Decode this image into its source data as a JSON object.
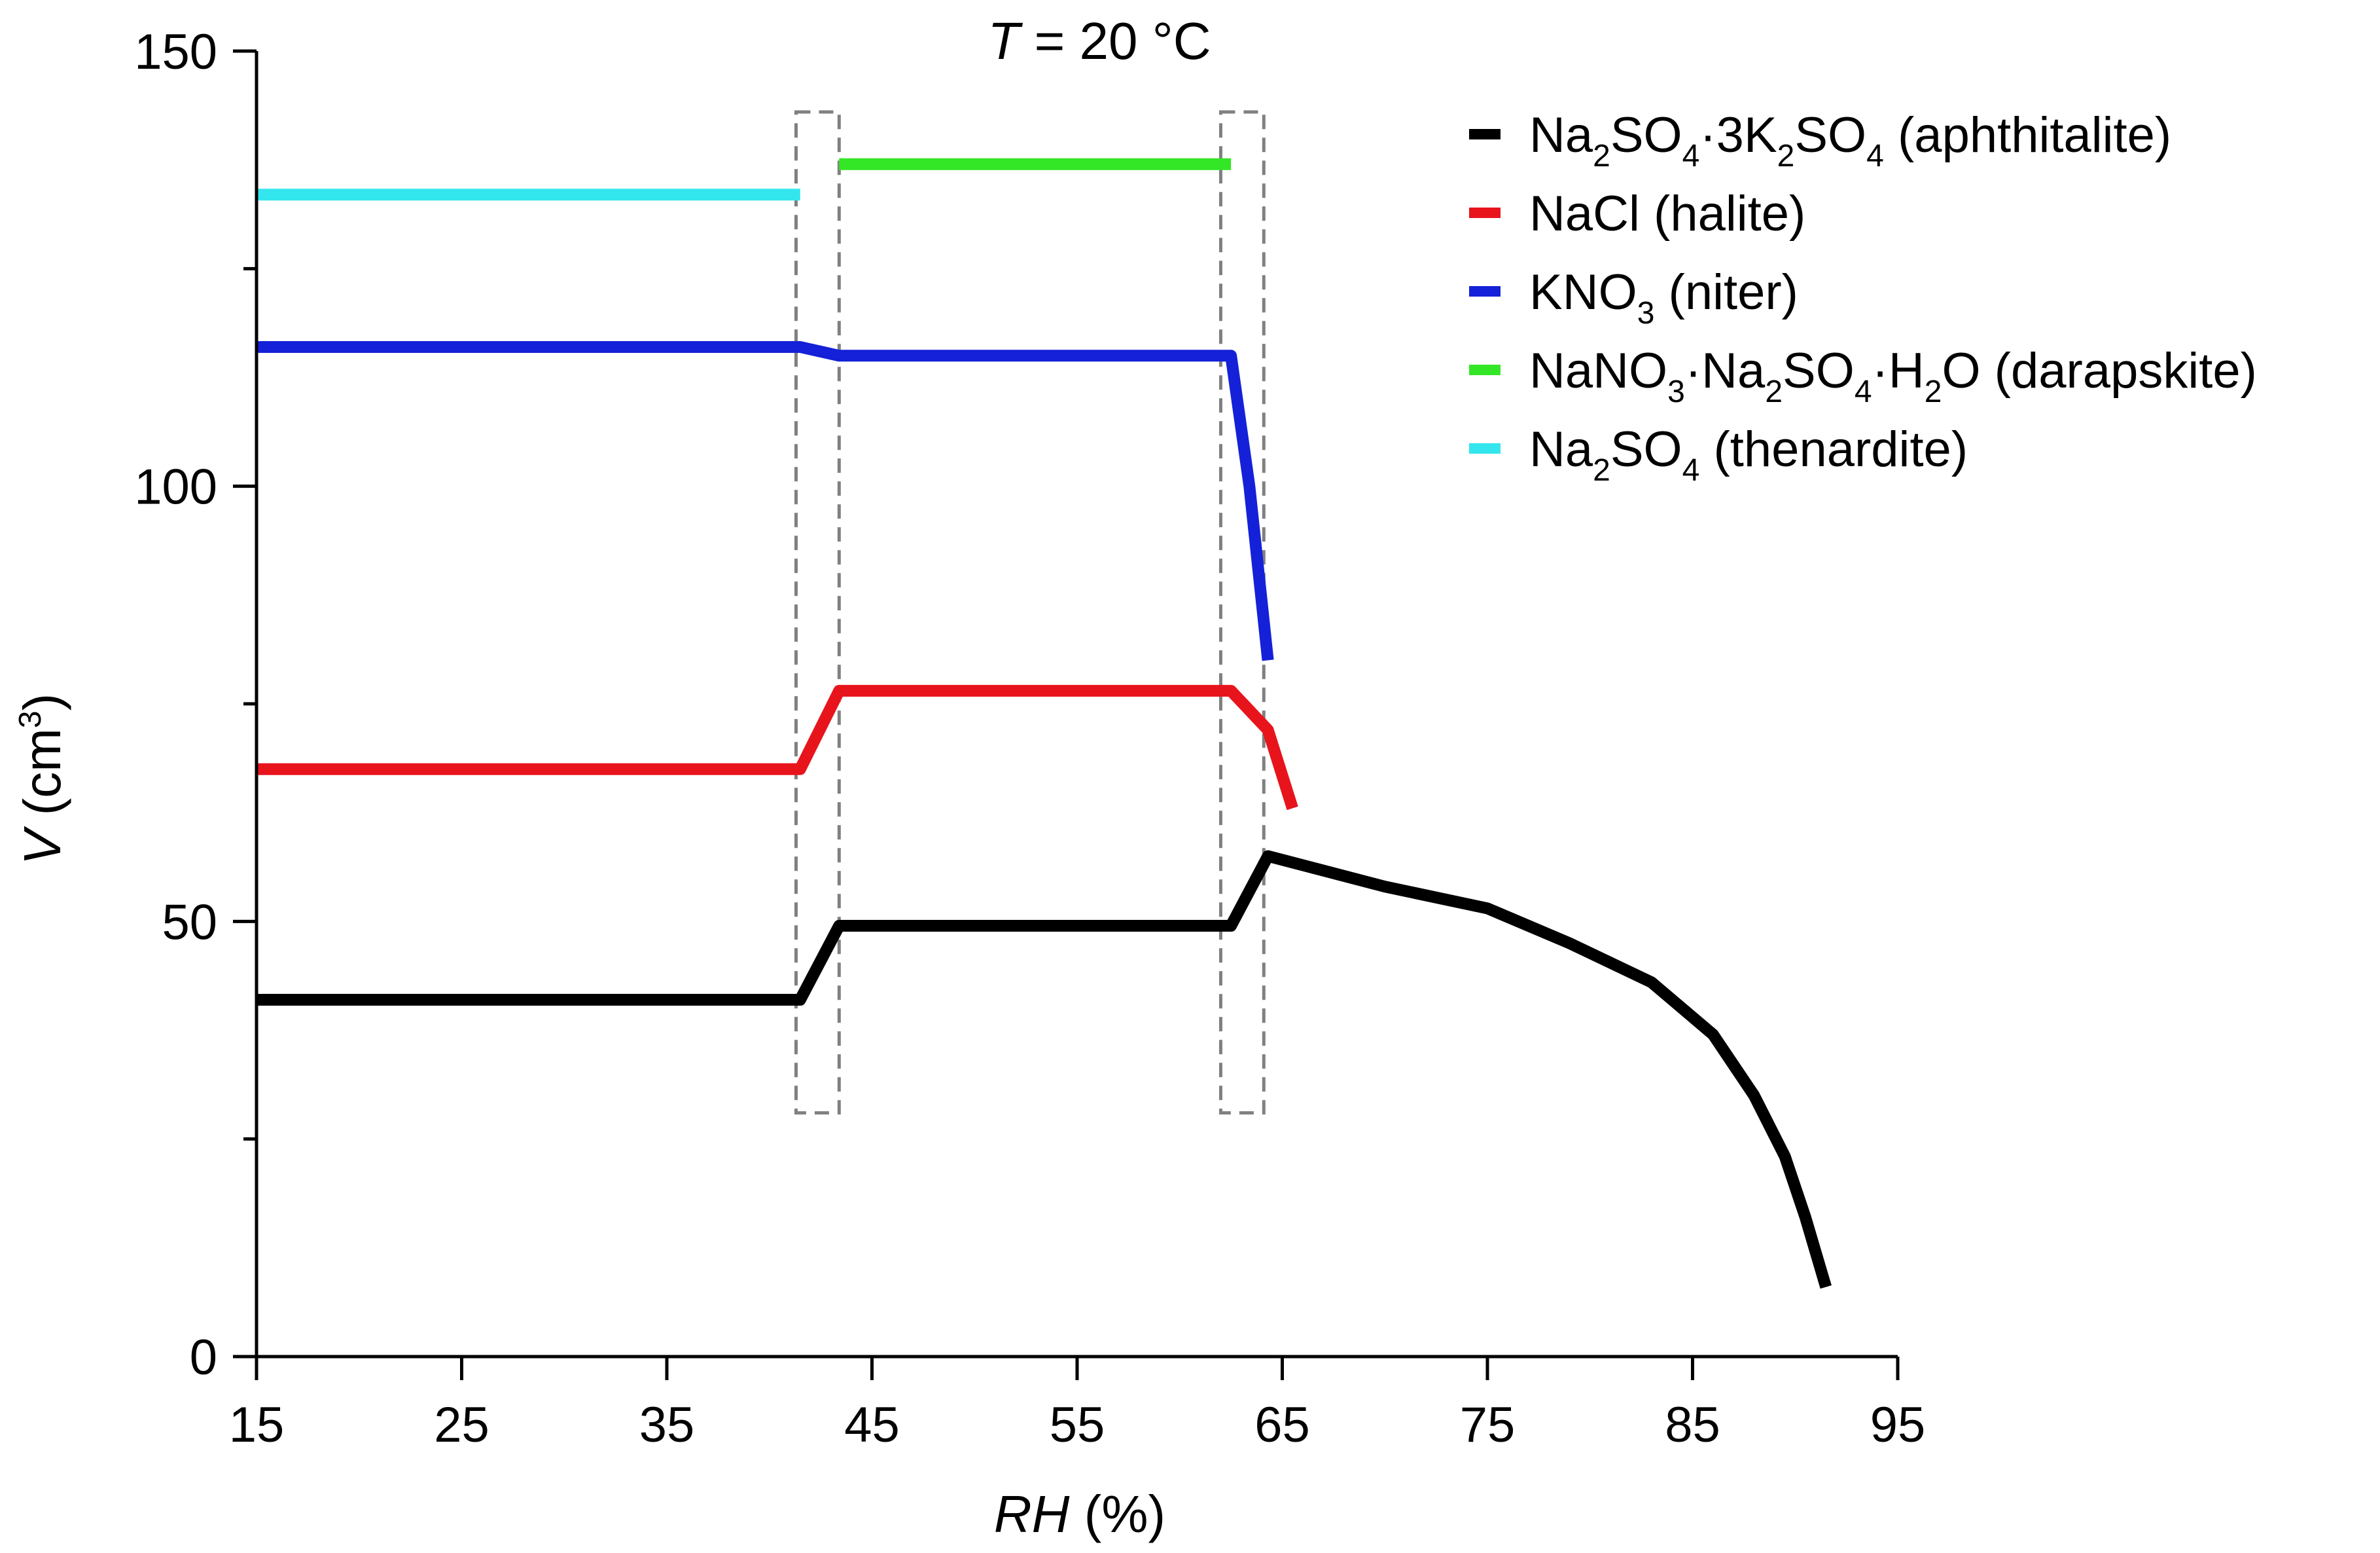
{
  "chart_data": {
    "type": "line",
    "title": "",
    "annotation": {
      "prefix": "T",
      "suffix": " = 20 °C"
    },
    "xlabel": {
      "main": "RH",
      "unit": " (%)"
    },
    "ylabel": {
      "main": "V",
      "unit_open": " (cm",
      "unit_exp": "3",
      "unit_close": ")"
    },
    "xlim": [
      15,
      95
    ],
    "ylim": [
      0,
      150
    ],
    "xticks": [
      15,
      25,
      35,
      45,
      55,
      65,
      75,
      85,
      95
    ],
    "yticks_major": [
      0,
      50,
      100,
      150
    ],
    "yticks_minor": [
      25,
      75,
      125
    ],
    "grid": false,
    "legend_position": "top-right",
    "dashed_regions": [
      {
        "x_start": 41.3,
        "x_end": 43.4,
        "y_bottom": 28,
        "y_top": 143
      },
      {
        "x_start": 62.0,
        "x_end": 64.1,
        "y_bottom": 28,
        "y_top": 143
      }
    ],
    "series": [
      {
        "name": "Na2SO4·3K2SO4 (aphthitalite)",
        "color": "#000000",
        "label_parts": [
          {
            "t": "Na",
            "s": "n"
          },
          {
            "t": "2",
            "s": "sub"
          },
          {
            "t": "SO",
            "s": "n"
          },
          {
            "t": "4",
            "s": "sub"
          },
          {
            "t": "·3K",
            "s": "n"
          },
          {
            "t": "2",
            "s": "sub"
          },
          {
            "t": "SO",
            "s": "n"
          },
          {
            "t": "4",
            "s": "sub"
          },
          {
            "t": " (aphthitalite)",
            "s": "n"
          }
        ],
        "x": [
          15,
          41.5,
          43.4,
          62.5,
          64.3,
          70,
          75,
          79,
          83,
          86,
          88,
          89.5,
          90.5,
          91.5
        ],
        "y": [
          41,
          41,
          49.5,
          49.5,
          57.5,
          54,
          51.5,
          47.5,
          43,
          37,
          30,
          23,
          16,
          8
        ]
      },
      {
        "name": "NaCl (halite)",
        "color": "#e8141c",
        "label_parts": [
          {
            "t": "NaCl  (halite)",
            "s": "n"
          }
        ],
        "x": [
          15,
          41.5,
          43.4,
          62.5,
          64.3,
          65.5
        ],
        "y": [
          67.5,
          67.5,
          76.5,
          76.5,
          72,
          63
        ]
      },
      {
        "name": "KNO3 (niter)",
        "color": "#1421d8",
        "label_parts": [
          {
            "t": "KNO",
            "s": "n"
          },
          {
            "t": "3",
            "s": "sub"
          },
          {
            "t": " (niter)",
            "s": "n"
          }
        ],
        "x": [
          15,
          41.5,
          43.4,
          62.5,
          63.4,
          64.3
        ],
        "y": [
          116,
          116,
          115,
          115,
          100,
          80
        ]
      },
      {
        "name": "NaNO3·Na2SO4·H2O (darapskite)",
        "color": "#33e626",
        "label_parts": [
          {
            "t": "NaNO",
            "s": "n"
          },
          {
            "t": "3",
            "s": "sub"
          },
          {
            "t": "·Na",
            "s": "n"
          },
          {
            "t": "2",
            "s": "sub"
          },
          {
            "t": "SO",
            "s": "n"
          },
          {
            "t": "4",
            "s": "sub"
          },
          {
            "t": "·H",
            "s": "n"
          },
          {
            "t": "2",
            "s": "sub"
          },
          {
            "t": "O  (darapskite)",
            "s": "n"
          }
        ],
        "x": [
          43.4,
          62.5
        ],
        "y": [
          137,
          137
        ]
      },
      {
        "name": "Na2SO4 (thenardite)",
        "color": "#33e6ee",
        "label_parts": [
          {
            "t": "Na",
            "s": "n"
          },
          {
            "t": "2",
            "s": "sub"
          },
          {
            "t": "SO",
            "s": "n"
          },
          {
            "t": "4",
            "s": "sub"
          },
          {
            "t": " (thenardite)",
            "s": "n"
          }
        ],
        "x": [
          15,
          41.5
        ],
        "y": [
          133.5,
          133.5
        ]
      }
    ]
  }
}
